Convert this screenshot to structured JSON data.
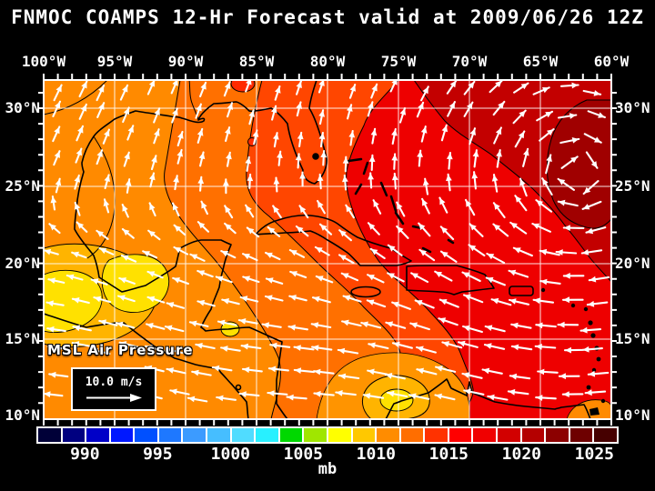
{
  "title": "FNMOC COAMPS 12-Hr Forecast valid at 2009/06/26 12Z",
  "map": {
    "field_label": "MSL Air Pressure",
    "wind_legend": {
      "label": "10.0 m/s"
    },
    "axes": {
      "top_labels": [
        "100°W",
        "95°W",
        "90°W",
        "85°W",
        "80°W",
        "75°W",
        "70°W",
        "65°W",
        "60°W"
      ],
      "left_labels": [
        "30°N",
        "25°N",
        "20°N",
        "15°N",
        "10°N"
      ],
      "right_labels": [
        "30°N",
        "25°N",
        "20°N",
        "15°N",
        "10°N"
      ]
    }
  },
  "colorbar": {
    "units": "mb",
    "tick_labels": [
      "990",
      "995",
      "1000",
      "1005",
      "1010",
      "1015",
      "1020",
      "1025"
    ],
    "segment_colors": [
      "#000038",
      "#000080",
      "#0000C8",
      "#0018FF",
      "#0050FF",
      "#1E78FF",
      "#3C9BFF",
      "#46BEFF",
      "#50DCFF",
      "#28F0FF",
      "#00D800",
      "#A0E600",
      "#FFFF00",
      "#FFC800",
      "#FF8C00",
      "#FF6E00",
      "#FF3200",
      "#FF0000",
      "#F00000",
      "#D20000",
      "#B40000",
      "#8C0000",
      "#6E0000",
      "#460000"
    ]
  },
  "field_palette": {
    "base": "#FF8A00",
    "mid_orange": "#FF7000",
    "orange_red": "#FF4600",
    "red": "#EE0000",
    "dark_red": "#C30000",
    "maroon": "#A00000",
    "gold": "#FFB400",
    "yellow": "#FFE100",
    "warm_orange": "#FF9400",
    "hot_spot": "#FF2A00"
  },
  "wind": {
    "arrow_color": "#FFFFFF"
  },
  "colors": {
    "background": "#000000",
    "text": "#FFFFFF",
    "grid": "#FFFFFF",
    "coast": "#000000"
  }
}
